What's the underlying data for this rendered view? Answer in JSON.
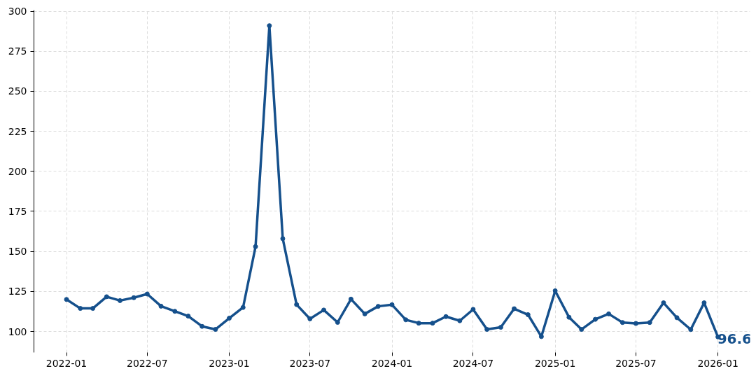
{
  "chart_data": {
    "type": "line",
    "x": [
      "2022-01",
      "2022-02",
      "2022-03",
      "2022-04",
      "2022-05",
      "2022-06",
      "2022-07",
      "2022-08",
      "2022-09",
      "2022-10",
      "2022-11",
      "2022-12",
      "2023-01",
      "2023-02",
      "2023-03",
      "2023-04",
      "2023-05",
      "2023-06",
      "2023-07",
      "2023-08",
      "2023-09",
      "2023-10",
      "2023-11",
      "2023-12",
      "2024-01",
      "2024-02",
      "2024-03",
      "2024-04",
      "2024-05",
      "2024-06",
      "2024-07",
      "2024-08",
      "2024-09",
      "2024-10",
      "2024-11",
      "2024-12",
      "2025-01",
      "2025-02",
      "2025-03",
      "2025-04",
      "2025-05",
      "2025-06",
      "2025-07",
      "2025-08",
      "2025-09",
      "2025-10",
      "2025-11",
      "2025-12",
      "2026-01"
    ],
    "values": [
      120,
      114.4,
      114.4,
      121.7,
      119.3,
      121.1,
      123.4,
      115.8,
      112.6,
      109.6,
      103.2,
      101.3,
      108.3,
      115,
      153,
      291,
      158,
      116.8,
      107.9,
      113.4,
      105.7,
      120.2,
      111,
      115.7,
      116.7,
      107.3,
      105.2,
      105.2,
      109.3,
      106.7,
      113.8,
      101.3,
      102.6,
      114.2,
      110.5,
      96.8,
      125.4,
      108.9,
      101.3,
      107.6,
      111,
      105.6,
      105,
      105.6,
      117.9,
      108.6,
      101.2,
      117.9,
      96.6
    ],
    "value_labels": [
      null,
      null,
      null,
      null,
      null,
      null,
      null,
      null,
      null,
      null,
      null,
      null,
      null,
      null,
      null,
      null,
      null,
      null,
      null,
      null,
      null,
      null,
      null,
      null,
      null,
      null,
      null,
      null,
      null,
      null,
      null,
      null,
      null,
      null,
      null,
      null,
      null,
      null,
      null,
      null,
      null,
      null,
      null,
      null,
      null,
      null,
      null,
      null,
      "96.6"
    ],
    "color": "#15508c",
    "marker": "circle",
    "line_style": "solid",
    "grid": true,
    "xlim": [
      "2021-10-20",
      "2026-03-14"
    ],
    "xticks": [
      "2022-01",
      "2022-07",
      "2023-01",
      "2023-07",
      "2024-01",
      "2024-07",
      "2025-01",
      "2025-07",
      "2026-01"
    ],
    "ylim": [
      86.9,
      300.7
    ],
    "yticks": [
      100,
      125,
      150,
      175,
      200,
      225,
      250,
      275,
      300
    ]
  }
}
